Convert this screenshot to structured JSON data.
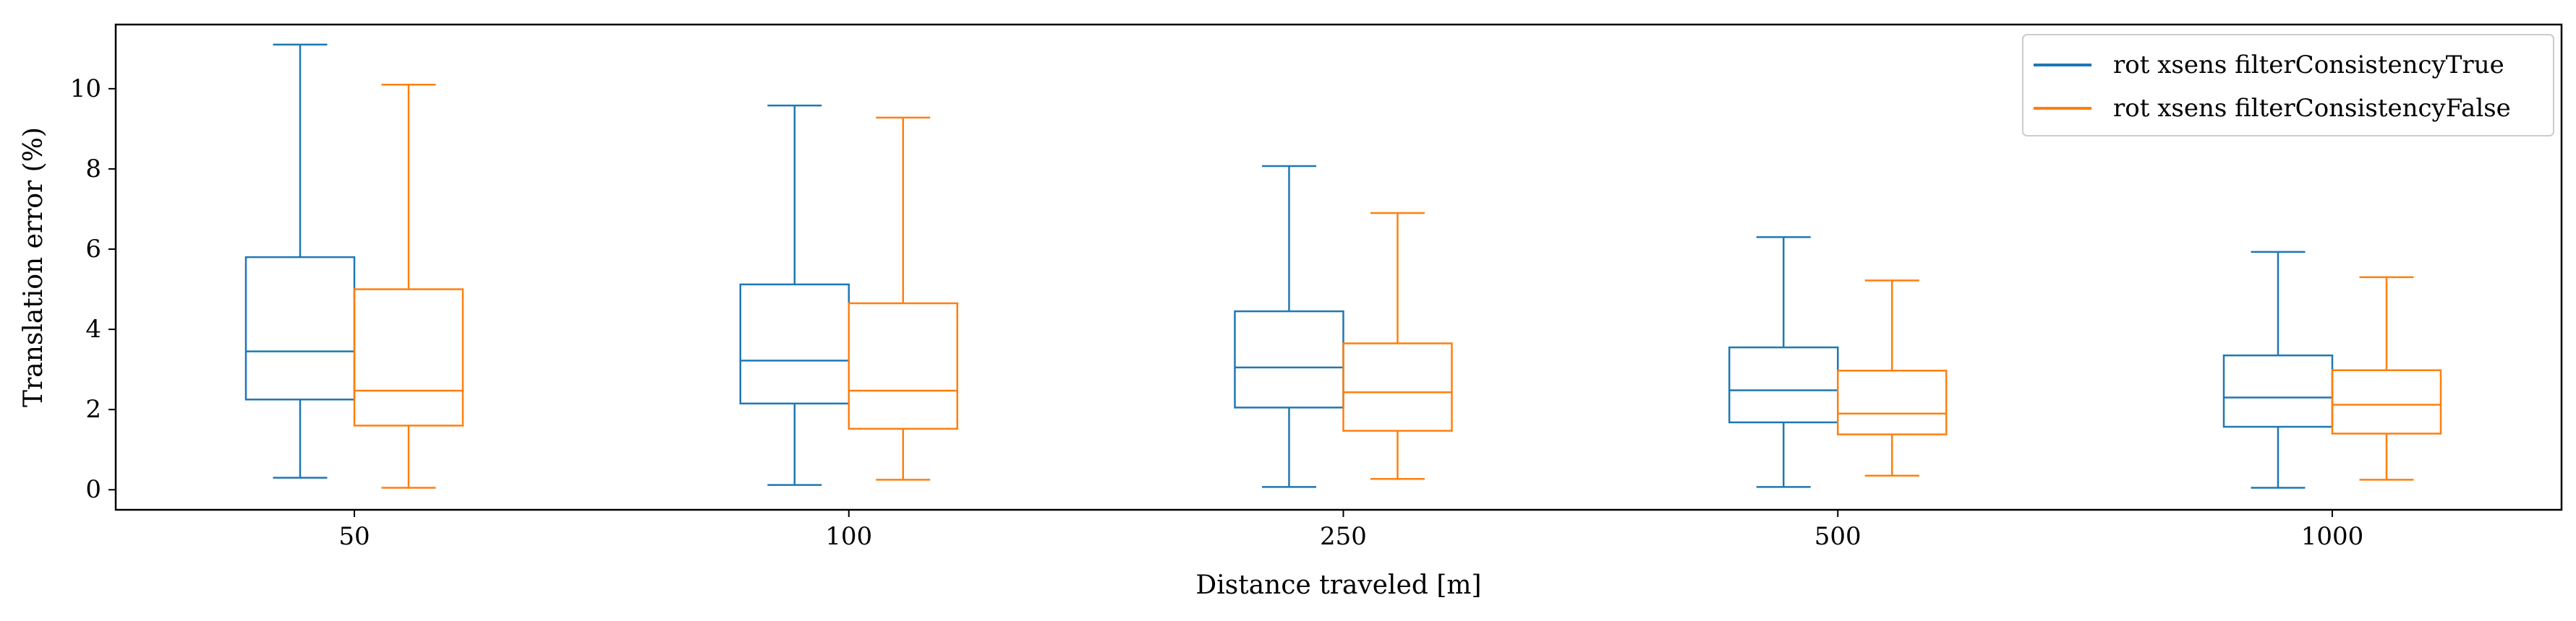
{
  "chart_data": {
    "type": "box",
    "xlabel": "Distance traveled [m]",
    "ylabel": "Translation error (%)",
    "categories": [
      "50",
      "100",
      "250",
      "500",
      "1000"
    ],
    "ylim": [
      -0.5,
      11.6
    ],
    "yticks": [
      0,
      2,
      4,
      6,
      8,
      10
    ],
    "grid": false,
    "legend_position": "top-right",
    "series": [
      {
        "name": "rot xsens filterConsistencyTrue",
        "color": "#1f77b4",
        "boxes": [
          {
            "whislo": 0.3,
            "q1": 2.25,
            "med": 3.45,
            "q3": 5.8,
            "whishi": 11.1
          },
          {
            "whislo": 0.12,
            "q1": 2.15,
            "med": 3.22,
            "q3": 5.12,
            "whishi": 9.58
          },
          {
            "whislo": 0.07,
            "q1": 2.05,
            "med": 3.05,
            "q3": 4.45,
            "whishi": 8.07
          },
          {
            "whislo": 0.07,
            "q1": 1.68,
            "med": 2.48,
            "q3": 3.55,
            "whishi": 6.3
          },
          {
            "whislo": 0.05,
            "q1": 1.57,
            "med": 2.3,
            "q3": 3.35,
            "whishi": 5.93
          }
        ]
      },
      {
        "name": "rot xsens filterConsistencyFalse",
        "color": "#ff7f0e",
        "boxes": [
          {
            "whislo": 0.05,
            "q1": 1.6,
            "med": 2.47,
            "q3": 5.0,
            "whishi": 10.1
          },
          {
            "whislo": 0.25,
            "q1": 1.52,
            "med": 2.47,
            "q3": 4.65,
            "whishi": 9.28
          },
          {
            "whislo": 0.27,
            "q1": 1.47,
            "med": 2.43,
            "q3": 3.65,
            "whishi": 6.9
          },
          {
            "whislo": 0.35,
            "q1": 1.38,
            "med": 1.9,
            "q3": 2.97,
            "whishi": 5.22
          },
          {
            "whislo": 0.25,
            "q1": 1.4,
            "med": 2.12,
            "q3": 2.98,
            "whishi": 5.3
          }
        ]
      }
    ]
  }
}
